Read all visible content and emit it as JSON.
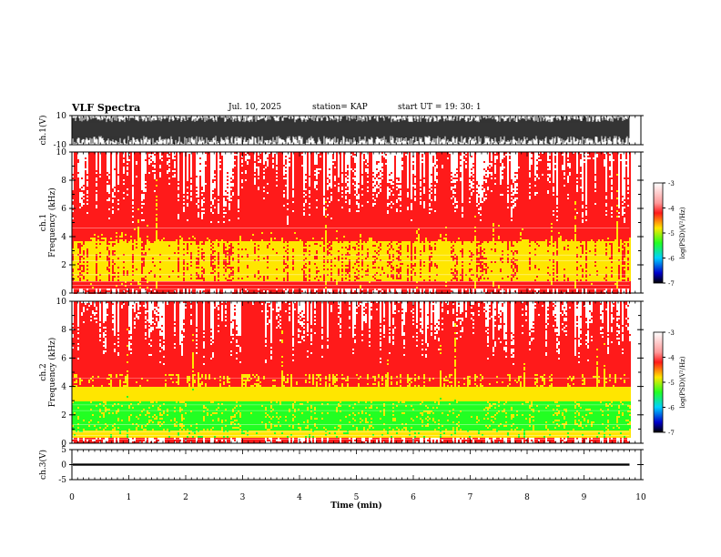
{
  "header": {
    "title": "VLF Spectra",
    "date": "Jul. 10, 2025",
    "station": "station= KAP",
    "start": "start  UT =   19: 30: 1"
  },
  "chart_data": {
    "type": "heatmap",
    "panels": [
      {
        "name": "ch1-waveform",
        "ylabel": "ch.1(V)",
        "ylim": [
          -10,
          10
        ],
        "ticks": [
          "10",
          "-10"
        ]
      },
      {
        "name": "ch1-spectrogram",
        "ylabel": "ch.1",
        "ylabel2": "Frequency  (kHz)",
        "ylim": [
          0,
          10
        ],
        "ticks": [
          "0",
          "2",
          "4",
          "6",
          "8",
          "10"
        ]
      },
      {
        "name": "ch2-spectrogram",
        "ylabel": "ch.2",
        "ylabel2": "Frequency  (kHz)",
        "ylim": [
          0,
          10
        ],
        "ticks": [
          "0",
          "2",
          "4",
          "6",
          "8",
          "10"
        ]
      },
      {
        "name": "ch3-waveform",
        "ylabel": "ch.3(V)",
        "ylim": [
          -5,
          5
        ],
        "ticks": [
          "5",
          "0",
          "-5"
        ]
      }
    ],
    "x": {
      "label": "Time  (min)",
      "range": [
        0,
        10
      ],
      "ticks": [
        "0",
        "1",
        "2",
        "3",
        "4",
        "5",
        "6",
        "7",
        "8",
        "9",
        "10"
      ]
    },
    "data_end_min": 9.8,
    "colorbar": {
      "label": "log(PSD)(V²/Hz)",
      "range": [
        -7,
        -3
      ],
      "ticks": [
        "-3",
        "-4",
        "-5",
        "-6",
        "-7"
      ]
    },
    "colors": {
      "high": "#ffffff",
      "red": "#ff1a1a",
      "yellow": "#ffe600",
      "green": "#22ff22",
      "cyan": "#00d0ff",
      "blue": "#0000cc",
      "low": "#000000"
    }
  }
}
